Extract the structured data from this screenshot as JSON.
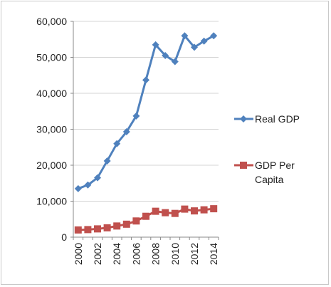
{
  "chart_data": {
    "type": "line",
    "x": [
      "2000",
      "2001",
      "2002",
      "2003",
      "2004",
      "2005",
      "2006",
      "2007",
      "2008",
      "2009",
      "2010",
      "2011",
      "2012",
      "2013",
      "2014"
    ],
    "x_tick_labels": [
      "2000",
      "2002",
      "2004",
      "2006",
      "2008",
      "2010",
      "2012",
      "2014"
    ],
    "series": [
      {
        "name": "Real GDP",
        "color": "#4f81bd",
        "marker": "diamond",
        "values": [
          13500,
          14500,
          16500,
          21200,
          26000,
          29300,
          33700,
          43700,
          53500,
          50500,
          48800,
          56000,
          52800,
          54500,
          56000
        ]
      },
      {
        "name": "GDP Per Capita",
        "legend_lines": [
          "GDP Per",
          "Capita"
        ],
        "color": "#c0504d",
        "marker": "square",
        "values": [
          2000,
          2100,
          2300,
          2600,
          3100,
          3600,
          4500,
          5800,
          7200,
          6800,
          6600,
          7800,
          7300,
          7600,
          7900
        ]
      }
    ],
    "y_ticks": [
      "0",
      "10,000",
      "20,000",
      "30,000",
      "40,000",
      "50,000",
      "60,000"
    ],
    "ylim": [
      0,
      60000
    ],
    "grid": true,
    "legend_position": "right"
  }
}
